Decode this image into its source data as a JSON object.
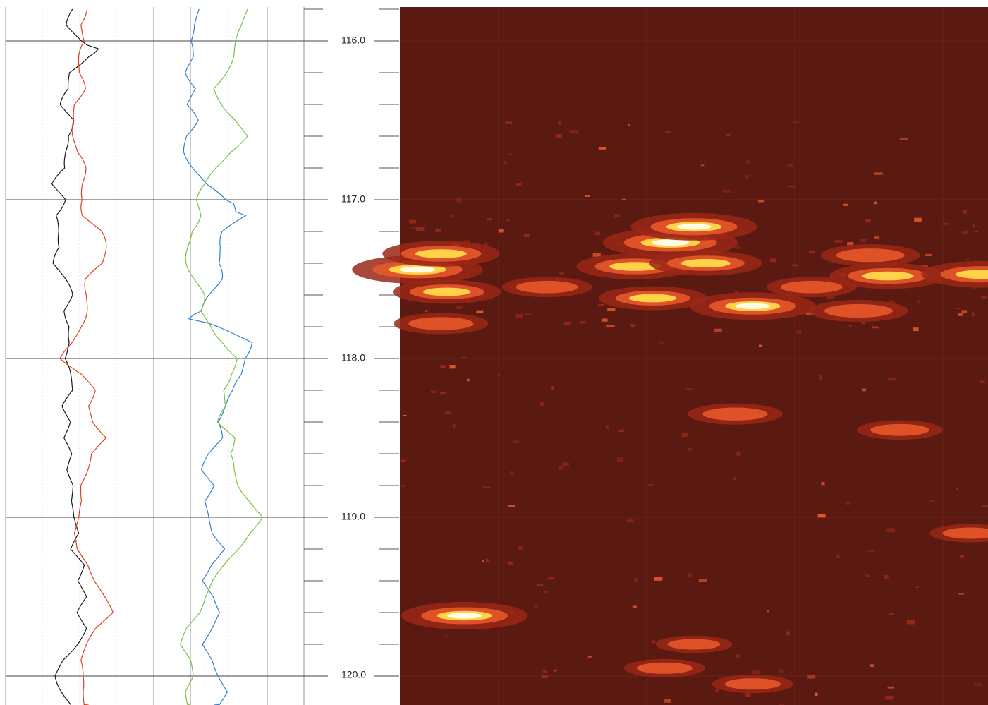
{
  "chart_data": [
    {
      "type": "line",
      "title": "",
      "xlabel": "",
      "ylabel": "",
      "depth_range": [
        115.8,
        120.2
      ],
      "depth_ticks": [
        "116.0",
        "117.0",
        "118.0",
        "119.0",
        "120.0"
      ],
      "grid": true,
      "series": [
        {
          "color": "#1a1a1a",
          "depth": [
            115.8,
            115.9,
            116.0,
            116.05,
            116.1,
            116.2,
            116.3,
            116.4,
            116.5,
            116.6,
            116.7,
            116.8,
            116.9,
            117.0,
            117.1,
            117.2,
            117.3,
            117.4,
            117.5,
            117.6,
            117.7,
            117.8,
            117.9,
            118.0,
            118.1,
            118.2,
            118.3,
            118.4,
            118.5,
            118.6,
            118.7,
            118.8,
            118.9,
            119.0,
            119.1,
            119.2,
            119.3,
            119.4,
            119.5,
            119.6,
            119.7,
            119.8,
            119.9,
            120.0,
            120.1,
            120.2
          ],
          "value": [
            0.48,
            0.44,
            0.5,
            0.66,
            0.52,
            0.42,
            0.46,
            0.4,
            0.44,
            0.38,
            0.4,
            0.44,
            0.34,
            0.38,
            0.3,
            0.36,
            0.4,
            0.34,
            0.38,
            0.42,
            0.4,
            0.46,
            0.44,
            0.38,
            0.42,
            0.46,
            0.4,
            0.44,
            0.38,
            0.44,
            0.42,
            0.46,
            0.44,
            0.46,
            0.5,
            0.44,
            0.52,
            0.48,
            0.56,
            0.5,
            0.54,
            0.46,
            0.38,
            0.36,
            0.4,
            0.44
          ]
        },
        {
          "color": "#e04020",
          "depth": [
            115.8,
            115.9,
            116.0,
            116.1,
            116.2,
            116.3,
            116.4,
            116.5,
            116.6,
            116.7,
            116.8,
            116.9,
            117.0,
            117.1,
            117.2,
            117.3,
            117.4,
            117.5,
            117.6,
            117.7,
            117.8,
            117.9,
            118.0,
            118.1,
            118.2,
            118.3,
            118.4,
            118.5,
            118.6,
            118.7,
            118.8,
            118.9,
            119.0,
            119.1,
            119.2,
            119.3,
            119.4,
            119.5,
            119.6,
            119.7,
            119.8,
            119.9,
            120.0,
            120.1,
            120.2
          ],
          "value": [
            0.52,
            0.5,
            0.56,
            0.52,
            0.48,
            0.5,
            0.46,
            0.5,
            0.48,
            0.46,
            0.5,
            0.52,
            0.56,
            0.54,
            0.62,
            0.64,
            0.66,
            0.58,
            0.56,
            0.52,
            0.48,
            0.46,
            0.4,
            0.52,
            0.58,
            0.54,
            0.6,
            0.7,
            0.58,
            0.54,
            0.5,
            0.52,
            0.5,
            0.46,
            0.48,
            0.56,
            0.6,
            0.66,
            0.72,
            0.62,
            0.56,
            0.5,
            0.5,
            0.52,
            0.56
          ]
        },
        {
          "color": "#2f7fd0",
          "depth": [
            115.8,
            115.9,
            116.0,
            116.1,
            116.2,
            116.3,
            116.4,
            116.5,
            116.6,
            116.7,
            116.8,
            116.9,
            117.0,
            117.05,
            117.1,
            117.2,
            117.3,
            117.4,
            117.5,
            117.6,
            117.7,
            117.75,
            117.8,
            117.9,
            118.0,
            118.1,
            118.2,
            118.3,
            118.4,
            118.5,
            118.6,
            118.7,
            118.8,
            118.9,
            119.0,
            119.1,
            119.2,
            119.3,
            119.4,
            119.5,
            119.6,
            119.7,
            119.8,
            119.9,
            120.0,
            120.1,
            120.2
          ],
          "value": [
            0.32,
            0.26,
            0.22,
            0.26,
            0.24,
            0.3,
            0.2,
            0.26,
            0.22,
            0.24,
            0.28,
            0.32,
            0.44,
            0.56,
            0.62,
            0.5,
            0.46,
            0.4,
            0.42,
            0.38,
            0.36,
            0.2,
            0.44,
            0.62,
            0.58,
            0.6,
            0.56,
            0.48,
            0.4,
            0.44,
            0.38,
            0.34,
            0.4,
            0.32,
            0.36,
            0.4,
            0.48,
            0.38,
            0.32,
            0.4,
            0.44,
            0.38,
            0.32,
            0.4,
            0.44,
            0.48,
            0.4
          ]
        },
        {
          "color": "#7ac043",
          "depth": [
            115.8,
            115.9,
            116.0,
            116.1,
            116.2,
            116.3,
            116.4,
            116.5,
            116.6,
            116.7,
            116.8,
            116.9,
            117.0,
            117.1,
            117.2,
            117.3,
            117.4,
            117.5,
            117.6,
            117.7,
            117.8,
            117.9,
            118.0,
            118.1,
            118.2,
            118.3,
            118.4,
            118.5,
            118.6,
            118.7,
            118.8,
            118.9,
            119.0,
            119.1,
            119.2,
            119.3,
            119.4,
            119.5,
            119.6,
            119.7,
            119.8,
            119.9,
            120.0,
            120.1,
            120.2
          ],
          "value": [
            0.62,
            0.6,
            0.56,
            0.52,
            0.46,
            0.4,
            0.48,
            0.56,
            0.6,
            0.48,
            0.42,
            0.38,
            0.3,
            0.28,
            0.22,
            0.24,
            0.26,
            0.28,
            0.3,
            0.28,
            0.4,
            0.5,
            0.56,
            0.48,
            0.44,
            0.5,
            0.46,
            0.54,
            0.48,
            0.52,
            0.58,
            0.66,
            0.72,
            0.62,
            0.56,
            0.48,
            0.4,
            0.34,
            0.3,
            0.22,
            0.18,
            0.24,
            0.26,
            0.22,
            0.24
          ]
        }
      ]
    },
    {
      "type": "heatmap",
      "title": "",
      "depth_range": [
        115.8,
        120.2
      ],
      "colors": {
        "background": "#5a1a12",
        "low": "#9a2818",
        "mid": "#e8582a",
        "high": "#ffd24a",
        "peak": "#fffce8"
      },
      "blobs": [
        {
          "depth": 117.27,
          "pos": 0.46,
          "intensity": 1.0
        },
        {
          "depth": 117.17,
          "pos": 0.5,
          "intensity": 0.9
        },
        {
          "depth": 117.42,
          "pos": 0.4,
          "intensity": 0.8
        },
        {
          "depth": 117.4,
          "pos": 0.52,
          "intensity": 0.75
        },
        {
          "depth": 117.67,
          "pos": 0.6,
          "intensity": 0.9
        },
        {
          "depth": 117.62,
          "pos": 0.43,
          "intensity": 0.7
        },
        {
          "depth": 117.44,
          "pos": 0.03,
          "intensity": 0.95
        },
        {
          "depth": 117.34,
          "pos": 0.07,
          "intensity": 0.8
        },
        {
          "depth": 117.58,
          "pos": 0.08,
          "intensity": 0.7
        },
        {
          "depth": 117.78,
          "pos": 0.07,
          "intensity": 0.55
        },
        {
          "depth": 117.48,
          "pos": 0.83,
          "intensity": 0.8
        },
        {
          "depth": 117.35,
          "pos": 0.8,
          "intensity": 0.6
        },
        {
          "depth": 117.7,
          "pos": 0.78,
          "intensity": 0.6
        },
        {
          "depth": 117.47,
          "pos": 0.99,
          "intensity": 0.85
        },
        {
          "depth": 117.55,
          "pos": 0.25,
          "intensity": 0.5
        },
        {
          "depth": 117.55,
          "pos": 0.7,
          "intensity": 0.5
        },
        {
          "depth": 118.35,
          "pos": 0.57,
          "intensity": 0.55
        },
        {
          "depth": 118.45,
          "pos": 0.85,
          "intensity": 0.45
        },
        {
          "depth": 119.62,
          "pos": 0.11,
          "intensity": 0.9
        },
        {
          "depth": 119.95,
          "pos": 0.45,
          "intensity": 0.4
        },
        {
          "depth": 120.05,
          "pos": 0.6,
          "intensity": 0.4
        },
        {
          "depth": 119.1,
          "pos": 0.97,
          "intensity": 0.4
        },
        {
          "depth": 119.8,
          "pos": 0.5,
          "intensity": 0.35
        }
      ]
    }
  ]
}
